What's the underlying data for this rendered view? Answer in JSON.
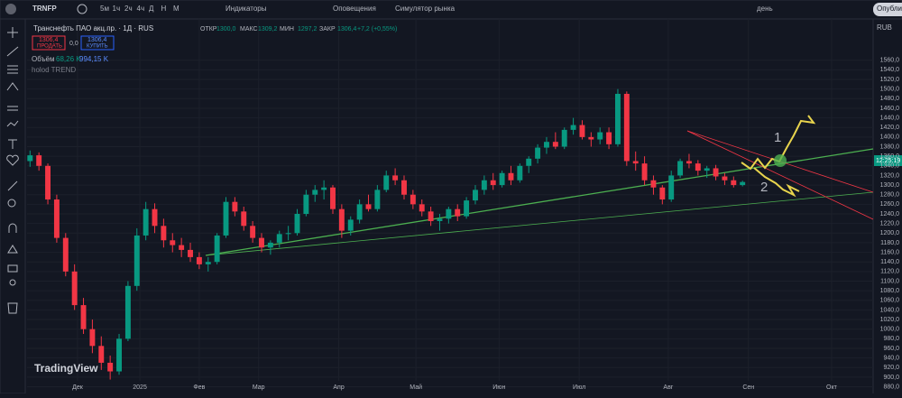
{
  "ui": {
    "toolbar": {
      "symbol": "TRNFP",
      "intervals": [
        "5м",
        "1ч",
        "2ч",
        "4ч",
        "Д",
        "Н",
        "М"
      ],
      "indicators": "Индикаторы",
      "alerts": "Оповещения",
      "replay": "Симулятор рынка",
      "period": "день",
      "publish": "Опубли"
    },
    "legend": {
      "title": "Транснефть ПАО акц.пр. · 1Д · RUS",
      "o_label": "ОТКР",
      "o": "1300,0",
      "h_label": "МАКС",
      "h": "1309,2",
      "l_label": "МИН",
      "l": "1297,2",
      "c_label": "ЗАКР",
      "c": "1306,4",
      "change": "+7,2 (+0,55%)"
    },
    "trade": {
      "sell_price": "1306,4",
      "sell": "ПРОДАТЬ",
      "spread": "0,0",
      "buy_price": "1306,4",
      "buy": "КУПИТЬ"
    },
    "volume": {
      "label": "Объём",
      "v1": "68,26 K",
      "v2": "994,15 K"
    },
    "indicator": "holod TREND",
    "logo": "TradingView",
    "currency": "RUB",
    "price_label": "12:25:19",
    "annotations": [
      "1",
      "2"
    ]
  },
  "chart_data": {
    "type": "candlestick",
    "up_color": "#089981",
    "down_color": "#f23645",
    "grid": true,
    "xlim": [
      -1,
      284
    ],
    "ylim": [
      866,
      1614
    ],
    "xticks": [
      {
        "value": 16,
        "label": "Дек"
      },
      {
        "value": 37,
        "label": "2025"
      },
      {
        "value": 57,
        "label": "Фев"
      },
      {
        "value": 77,
        "label": "Мар"
      },
      {
        "value": 104,
        "label": "Апр"
      },
      {
        "value": 130,
        "label": "Май"
      },
      {
        "value": 158,
        "label": "Июн"
      },
      {
        "value": 185,
        "label": "Июл"
      },
      {
        "value": 215,
        "label": "Авг"
      },
      {
        "value": 242,
        "label": "Сен"
      },
      {
        "value": 270,
        "label": "Окт"
      }
    ],
    "yticks": [
      {
        "value": 880,
        "label": "880,0"
      },
      {
        "value": 900,
        "label": "900,0"
      },
      {
        "value": 920,
        "label": "920,0"
      },
      {
        "value": 940,
        "label": "940,0"
      },
      {
        "value": 960,
        "label": "960,0"
      },
      {
        "value": 980,
        "label": "980,0"
      },
      {
        "value": 1000,
        "label": "1000,0"
      },
      {
        "value": 1020,
        "label": "1020,0"
      },
      {
        "value": 1040,
        "label": "1040,0"
      },
      {
        "value": 1060,
        "label": "1060,0"
      },
      {
        "value": 1080,
        "label": "1080,0"
      },
      {
        "value": 1100,
        "label": "1100,0"
      },
      {
        "value": 1120,
        "label": "1120,0"
      },
      {
        "value": 1140,
        "label": "1140,0"
      },
      {
        "value": 1160,
        "label": "1160,0"
      },
      {
        "value": 1180,
        "label": "1180,0"
      },
      {
        "value": 1200,
        "label": "1200,0"
      },
      {
        "value": 1220,
        "label": "1220,0"
      },
      {
        "value": 1240,
        "label": "1240,0"
      },
      {
        "value": 1260,
        "label": "1260,0"
      },
      {
        "value": 1280,
        "label": "1280,0"
      },
      {
        "value": 1300,
        "label": "1300,0"
      },
      {
        "value": 1320,
        "label": "1320,0"
      },
      {
        "value": 1340,
        "label": "1340,0"
      },
      {
        "value": 1360,
        "label": "1360,0"
      },
      {
        "value": 1380,
        "label": "1380,0"
      },
      {
        "value": 1400,
        "label": "1400,0"
      },
      {
        "value": 1420,
        "label": "1420,0"
      },
      {
        "value": 1440,
        "label": "1440,0"
      },
      {
        "value": 1460,
        "label": "1460,0"
      },
      {
        "value": 1480,
        "label": "1480,0"
      },
      {
        "value": 1500,
        "label": "1500,0"
      },
      {
        "value": 1520,
        "label": "1520,0"
      },
      {
        "value": 1540,
        "label": "1540,0"
      },
      {
        "value": 1560,
        "label": "1560,0"
      }
    ],
    "x": [
      0,
      3,
      6,
      9,
      12,
      15,
      18,
      21,
      24,
      27,
      30,
      33,
      36,
      39,
      42,
      45,
      48,
      51,
      54,
      57,
      60,
      63,
      66,
      69,
      72,
      75,
      78,
      81,
      84,
      87,
      90,
      93,
      96,
      99,
      102,
      105,
      108,
      111,
      114,
      117,
      120,
      123,
      126,
      129,
      132,
      135,
      138,
      141,
      144,
      147,
      150,
      153,
      156,
      159,
      162,
      165,
      168,
      171,
      174,
      177,
      180,
      183,
      186,
      189,
      192,
      195,
      198,
      201,
      204,
      207,
      210,
      213,
      216,
      219,
      222,
      225,
      228,
      231,
      234,
      237,
      240
    ],
    "ohlc": [
      [
        1350,
        1372,
        1338,
        1362
      ],
      [
        1362,
        1368,
        1330,
        1340
      ],
      [
        1340,
        1345,
        1260,
        1270
      ],
      [
        1270,
        1280,
        1180,
        1190
      ],
      [
        1190,
        1200,
        1110,
        1120
      ],
      [
        1120,
        1135,
        1040,
        1050
      ],
      [
        1050,
        1065,
        990,
        1000
      ],
      [
        1000,
        1020,
        950,
        965
      ],
      [
        965,
        985,
        915,
        930
      ],
      [
        930,
        945,
        895,
        912
      ],
      [
        912,
        990,
        905,
        980
      ],
      [
        980,
        1100,
        975,
        1090
      ],
      [
        1090,
        1210,
        1080,
        1195
      ],
      [
        1195,
        1265,
        1185,
        1250
      ],
      [
        1250,
        1262,
        1200,
        1215
      ],
      [
        1215,
        1230,
        1170,
        1185
      ],
      [
        1185,
        1200,
        1160,
        1175
      ],
      [
        1175,
        1190,
        1150,
        1165
      ],
      [
        1165,
        1180,
        1140,
        1150
      ],
      [
        1150,
        1160,
        1125,
        1135
      ],
      [
        1135,
        1150,
        1120,
        1140
      ],
      [
        1140,
        1200,
        1135,
        1195
      ],
      [
        1195,
        1275,
        1190,
        1265
      ],
      [
        1265,
        1275,
        1235,
        1245
      ],
      [
        1245,
        1255,
        1205,
        1215
      ],
      [
        1215,
        1225,
        1180,
        1190
      ],
      [
        1190,
        1200,
        1160,
        1170
      ],
      [
        1170,
        1185,
        1155,
        1180
      ],
      [
        1180,
        1205,
        1170,
        1198
      ],
      [
        1198,
        1215,
        1185,
        1200
      ],
      [
        1200,
        1250,
        1195,
        1240
      ],
      [
        1240,
        1290,
        1235,
        1280
      ],
      [
        1280,
        1300,
        1265,
        1290
      ],
      [
        1290,
        1310,
        1270,
        1295
      ],
      [
        1295,
        1300,
        1240,
        1250
      ],
      [
        1250,
        1260,
        1190,
        1205
      ],
      [
        1205,
        1235,
        1195,
        1228
      ],
      [
        1228,
        1270,
        1220,
        1260
      ],
      [
        1260,
        1280,
        1245,
        1250
      ],
      [
        1250,
        1300,
        1245,
        1290
      ],
      [
        1290,
        1330,
        1285,
        1320
      ],
      [
        1320,
        1335,
        1300,
        1310
      ],
      [
        1310,
        1320,
        1270,
        1280
      ],
      [
        1280,
        1290,
        1250,
        1260
      ],
      [
        1260,
        1270,
        1235,
        1245
      ],
      [
        1245,
        1255,
        1215,
        1225
      ],
      [
        1225,
        1240,
        1205,
        1230
      ],
      [
        1230,
        1255,
        1220,
        1250
      ],
      [
        1250,
        1260,
        1225,
        1235
      ],
      [
        1235,
        1275,
        1230,
        1268
      ],
      [
        1268,
        1300,
        1260,
        1290
      ],
      [
        1290,
        1320,
        1280,
        1310
      ],
      [
        1310,
        1325,
        1290,
        1300
      ],
      [
        1300,
        1330,
        1295,
        1325
      ],
      [
        1325,
        1340,
        1300,
        1310
      ],
      [
        1310,
        1345,
        1305,
        1340
      ],
      [
        1340,
        1360,
        1325,
        1355
      ],
      [
        1355,
        1385,
        1345,
        1378
      ],
      [
        1378,
        1400,
        1365,
        1390
      ],
      [
        1390,
        1410,
        1375,
        1380
      ],
      [
        1380,
        1420,
        1375,
        1415
      ],
      [
        1415,
        1440,
        1405,
        1425
      ],
      [
        1425,
        1435,
        1395,
        1400
      ],
      [
        1400,
        1410,
        1380,
        1395
      ],
      [
        1395,
        1420,
        1385,
        1410
      ],
      [
        1410,
        1420,
        1375,
        1385
      ],
      [
        1385,
        1500,
        1380,
        1490
      ],
      [
        1490,
        1495,
        1340,
        1350
      ],
      [
        1350,
        1370,
        1330,
        1345
      ],
      [
        1345,
        1360,
        1300,
        1310
      ],
      [
        1310,
        1320,
        1280,
        1295
      ],
      [
        1295,
        1300,
        1260,
        1270
      ],
      [
        1270,
        1330,
        1265,
        1320
      ],
      [
        1320,
        1355,
        1315,
        1350
      ],
      [
        1350,
        1365,
        1335,
        1345
      ],
      [
        1345,
        1352,
        1320,
        1330
      ],
      [
        1330,
        1340,
        1315,
        1335
      ],
      [
        1335,
        1342,
        1310,
        1318
      ],
      [
        1318,
        1325,
        1300,
        1310
      ],
      [
        1310,
        1318,
        1295,
        1300
      ],
      [
        1300,
        1309.2,
        1297.2,
        1306.4
      ]
    ]
  }
}
